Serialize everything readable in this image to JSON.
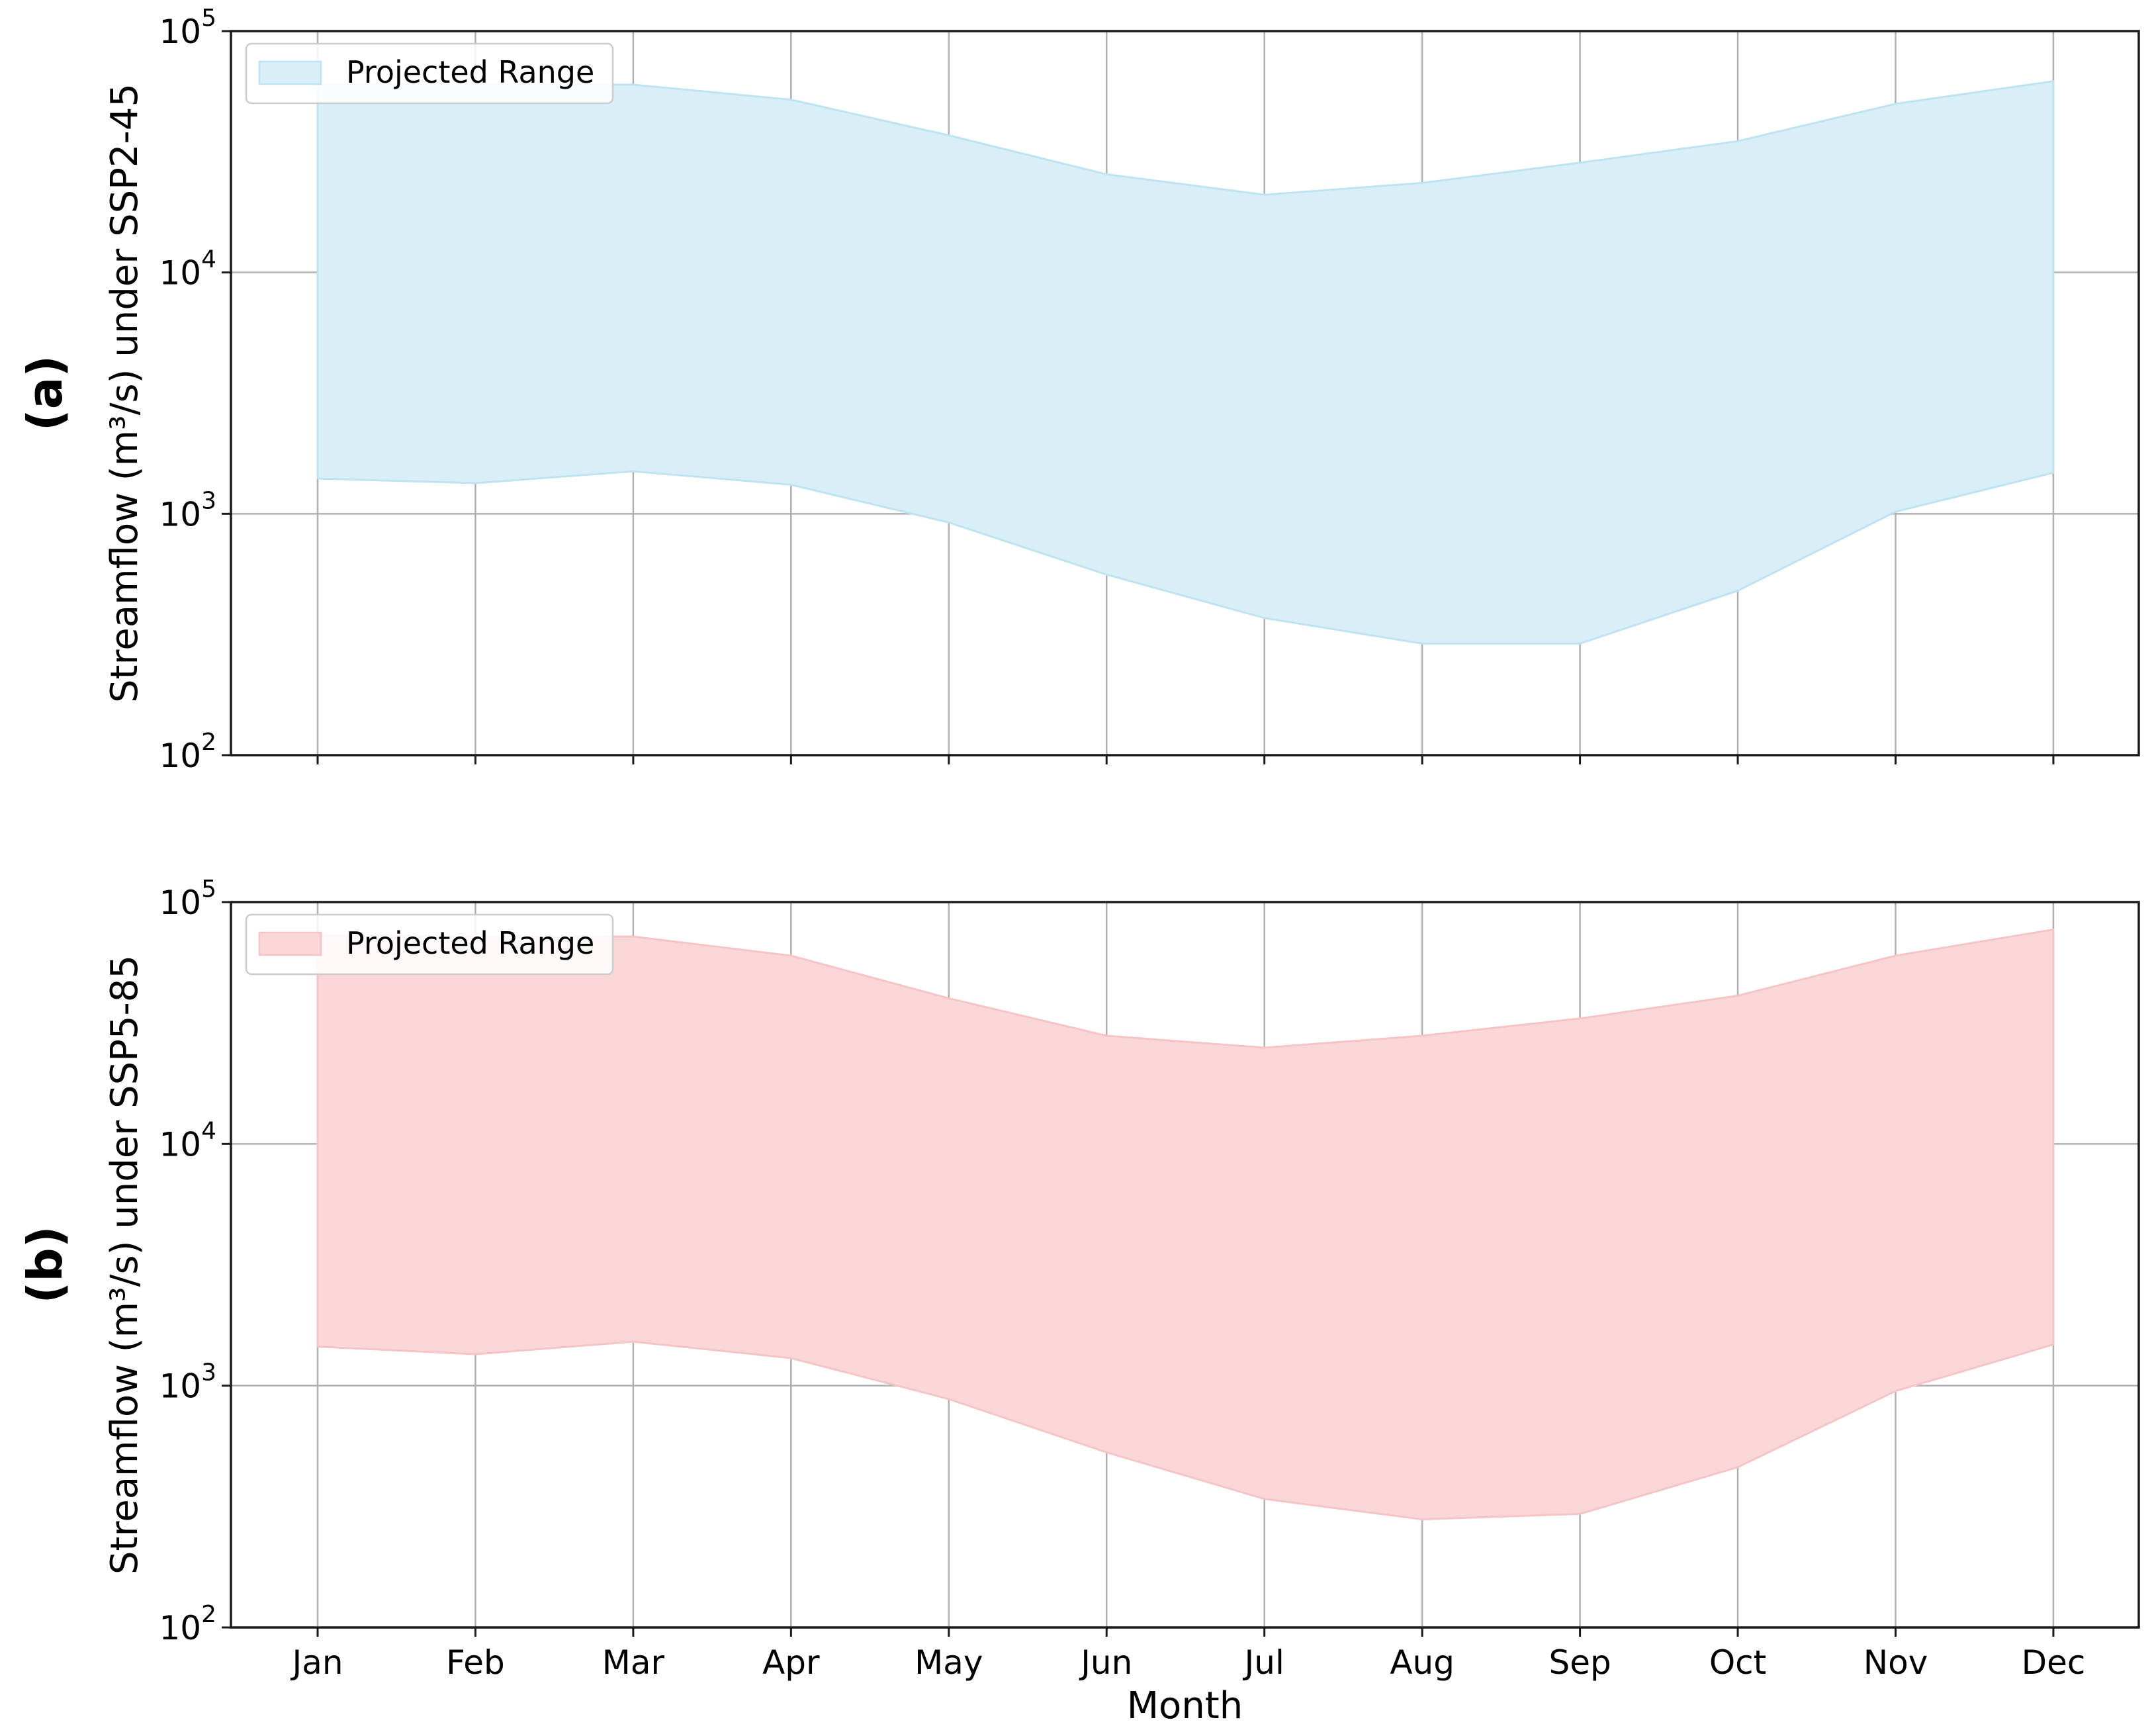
{
  "chart_data": [
    {
      "type": "area",
      "panel_label": "(a)",
      "ylabel": "Streamflow (m³/s) under SSP2-45",
      "xlabel": "",
      "yscale": "log",
      "ylim": [
        100,
        100000
      ],
      "y_ticks": [
        {
          "value": 100,
          "base": "10",
          "exp": "2"
        },
        {
          "value": 1000,
          "base": "10",
          "exp": "3"
        },
        {
          "value": 10000,
          "base": "10",
          "exp": "4"
        },
        {
          "value": 100000,
          "base": "10",
          "exp": "5"
        }
      ],
      "categories": [
        "Jan",
        "Feb",
        "Mar",
        "Apr",
        "May",
        "Jun",
        "Jul",
        "Aug",
        "Sep",
        "Oct",
        "Nov",
        "Dec"
      ],
      "show_x_tick_labels": false,
      "grid": true,
      "legend": {
        "label": "Projected Range",
        "placement": "top-left"
      },
      "colors": {
        "fill": "#d9eef7",
        "edge": "#bfe3f1"
      },
      "series": [
        {
          "name": "Projected Range",
          "lower": [
            1400,
            1340,
            1500,
            1320,
            920,
            560,
            370,
            290,
            290,
            480,
            1020,
            1480
          ],
          "upper": [
            60000,
            60000,
            60000,
            52000,
            37000,
            25500,
            21000,
            23500,
            28500,
            35000,
            50000,
            62000
          ]
        }
      ]
    },
    {
      "type": "area",
      "panel_label": "(b)",
      "ylabel": "Streamflow (m³/s) under SSP5-85",
      "xlabel": "Month",
      "yscale": "log",
      "ylim": [
        100,
        100000
      ],
      "y_ticks": [
        {
          "value": 100,
          "base": "10",
          "exp": "2"
        },
        {
          "value": 1000,
          "base": "10",
          "exp": "3"
        },
        {
          "value": 10000,
          "base": "10",
          "exp": "4"
        },
        {
          "value": 100000,
          "base": "10",
          "exp": "5"
        }
      ],
      "categories": [
        "Jan",
        "Feb",
        "Mar",
        "Apr",
        "May",
        "Jun",
        "Jul",
        "Aug",
        "Sep",
        "Oct",
        "Nov",
        "Dec"
      ],
      "show_x_tick_labels": true,
      "grid": true,
      "legend": {
        "label": "Projected Range",
        "placement": "top-left"
      },
      "colors": {
        "fill": "#f9d7d8",
        "edge": "#f5c4c6"
      },
      "series": [
        {
          "name": "Projected Range",
          "lower": [
            1450,
            1350,
            1520,
            1300,
            880,
            530,
            340,
            280,
            295,
            460,
            950,
            1480
          ],
          "upper": [
            73000,
            72000,
            72000,
            60000,
            40000,
            28000,
            25000,
            28000,
            33000,
            41000,
            60000,
            77000
          ]
        }
      ]
    }
  ]
}
